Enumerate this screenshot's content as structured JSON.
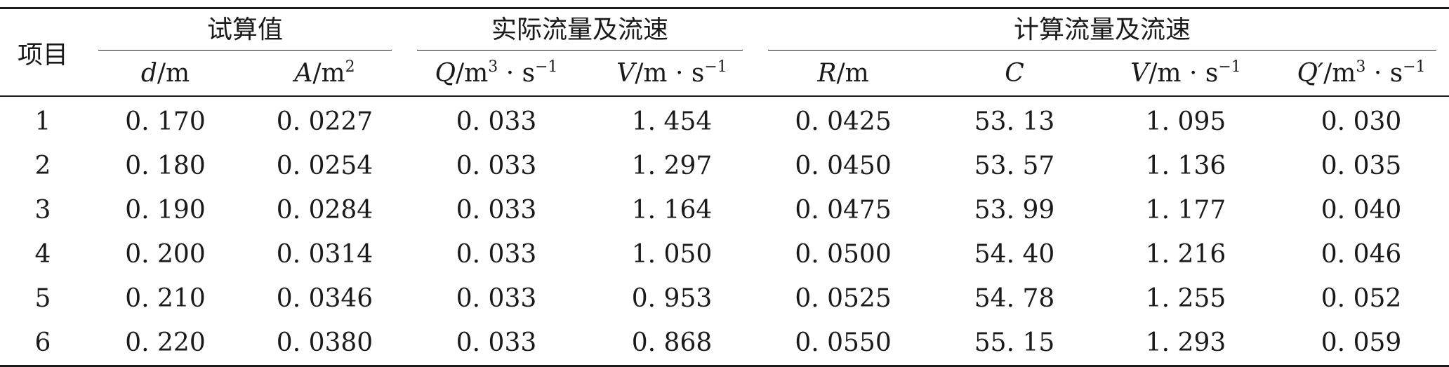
{
  "table": {
    "stub_header": "项目",
    "groups": {
      "trial": "试算值",
      "actual": "实际流量及流速",
      "computed": "计算流量及流速"
    },
    "subheaders": {
      "d": {
        "sym": "d",
        "unit": "/m"
      },
      "A": {
        "sym": "A",
        "unit": "/m",
        "sup": "2"
      },
      "Q": {
        "sym": "Q",
        "unit": "/m",
        "sup": "3",
        "tail": " · s",
        "sup2": "−1"
      },
      "V": {
        "sym": "V",
        "unit": "/m · s",
        "sup": "−1"
      },
      "R": {
        "sym": "R",
        "unit": "/m"
      },
      "C": {
        "sym": "C"
      },
      "V2": {
        "sym": "V",
        "unit": "/m · s",
        "sup": "−1"
      },
      "Q2": {
        "sym": "Q′",
        "unit": "/m",
        "sup": "3",
        "tail": " · s",
        "sup2": "−1"
      }
    },
    "rows": [
      [
        "1",
        "0. 170",
        "0. 0227",
        "0. 033",
        "1. 454",
        "0. 0425",
        "53. 13",
        "1. 095",
        "0. 030"
      ],
      [
        "2",
        "0. 180",
        "0. 0254",
        "0. 033",
        "1. 297",
        "0. 0450",
        "53. 57",
        "1. 136",
        "0. 035"
      ],
      [
        "3",
        "0. 190",
        "0. 0284",
        "0. 033",
        "1. 164",
        "0. 0475",
        "53. 99",
        "1. 177",
        "0. 040"
      ],
      [
        "4",
        "0. 200",
        "0. 0314",
        "0. 033",
        "1. 050",
        "0. 0500",
        "54. 40",
        "1. 216",
        "0. 046"
      ],
      [
        "5",
        "0. 210",
        "0. 0346",
        "0. 033",
        "0. 953",
        "0. 0525",
        "54. 78",
        "1. 255",
        "0. 052"
      ],
      [
        "6",
        "0. 220",
        "0. 0380",
        "0. 033",
        "0. 868",
        "0. 0550",
        "55. 15",
        "1. 293",
        "0. 059"
      ]
    ]
  }
}
